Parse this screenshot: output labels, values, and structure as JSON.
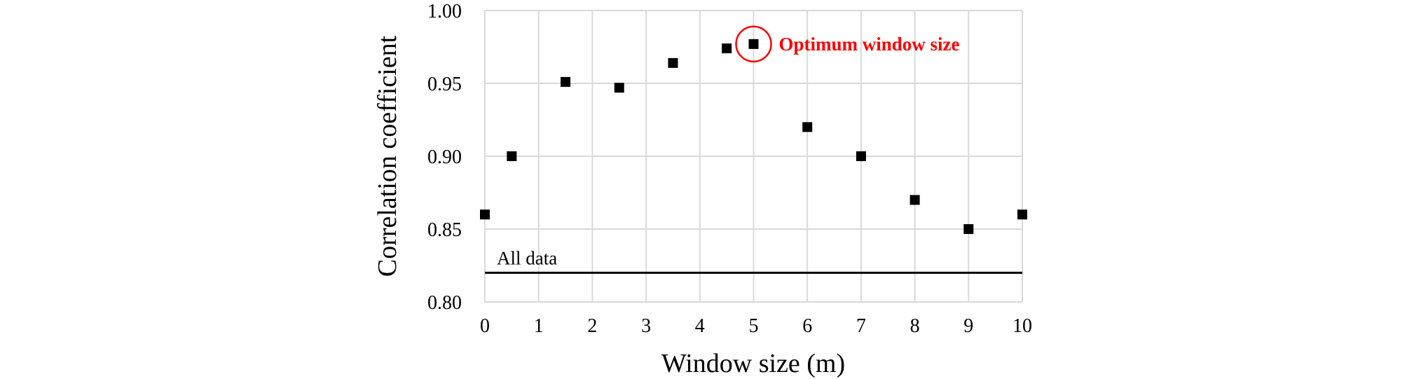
{
  "chart_data": {
    "type": "scatter",
    "title": "",
    "xlabel": "Window size (m)",
    "ylabel": "Correlation coefficient",
    "xlim": [
      0,
      10
    ],
    "ylim": [
      0.8,
      1.0
    ],
    "x_ticks": [
      "0",
      "1",
      "2",
      "3",
      "4",
      "5",
      "6",
      "7",
      "8",
      "9",
      "10"
    ],
    "y_ticks": [
      "0.80",
      "0.85",
      "0.90",
      "0.95",
      "1.00"
    ],
    "grid": true,
    "series": [
      {
        "x": [
          0,
          0.5,
          1.5,
          2.5,
          3.5,
          4.5,
          5,
          6,
          7,
          8,
          9,
          10
        ],
        "y": [
          0.86,
          0.9,
          0.951,
          0.947,
          0.964,
          0.974,
          0.977,
          0.92,
          0.9,
          0.87,
          0.85,
          0.86
        ],
        "marker": "square",
        "color": "#000000"
      }
    ],
    "reference_line": {
      "label": "All data",
      "y": 0.82,
      "color": "#000000"
    },
    "annotation": {
      "label": "Optimum window size",
      "x": 5,
      "y": 0.977,
      "color": "#ff0000"
    }
  }
}
